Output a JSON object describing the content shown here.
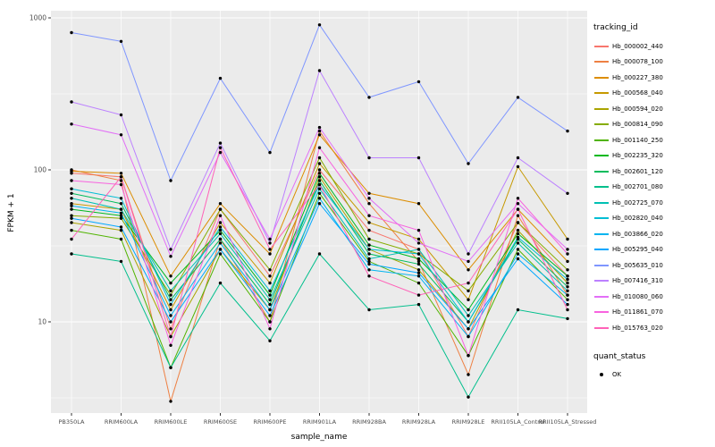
{
  "chart_data": {
    "type": "line",
    "title": "",
    "xlabel": "sample_name",
    "ylabel": "FPKM + 1",
    "y_scale": "log10",
    "y_ticks": [
      10,
      100,
      1000
    ],
    "y_tick_labels": [
      "10",
      "100",
      "1000"
    ],
    "y_minor_ticks": [
      3.162,
      31.62,
      316.2
    ],
    "ylim": [
      2.4,
      1100
    ],
    "grid": "on",
    "panel_background": "#EBEBEB",
    "gridline_color": "#FFFFFF",
    "point_color": "#000000",
    "legend_position": "right",
    "legend_title": "tracking_id",
    "categories": [
      "PB350LA",
      "RRIM600LA",
      "RRIM600LE",
      "RRIM600SE",
      "RRIM600PE",
      "RRIM901LA",
      "RRIM928BA",
      "RRIM928LA",
      "RRIM928LE",
      "RRII105LA_Control",
      "RRII105LA_Stressed"
    ],
    "series": [
      {
        "name": "Hb_000002_440",
        "color": "#F8766D",
        "values": [
          95,
          90,
          9,
          55,
          20,
          100,
          40,
          30,
          8,
          45,
          20
        ]
      },
      {
        "name": "Hb_000078_100",
        "color": "#EE8043",
        "values": [
          100,
          85,
          3,
          35,
          10,
          180,
          60,
          25,
          4.5,
          50,
          15
        ]
      },
      {
        "name": "Hb_000227_380",
        "color": "#DC8D00",
        "values": [
          98,
          95,
          20,
          60,
          28,
          170,
          70,
          60,
          22,
          55,
          25
        ]
      },
      {
        "name": "Hb_000568_040",
        "color": "#C69900",
        "values": [
          60,
          55,
          12,
          45,
          18,
          110,
          45,
          35,
          14,
          105,
          35
        ]
      },
      {
        "name": "Hb_000594_020",
        "color": "#AAA400",
        "values": [
          45,
          40,
          8,
          30,
          12,
          90,
          30,
          22,
          9,
          40,
          18
        ]
      },
      {
        "name": "Hb_000814_090",
        "color": "#86AC00",
        "values": [
          50,
          48,
          15,
          55,
          22,
          120,
          35,
          28,
          16,
          45,
          22
        ]
      },
      {
        "name": "Hb_001140_250",
        "color": "#50B400",
        "values": [
          40,
          35,
          5,
          28,
          10,
          70,
          25,
          18,
          6,
          30,
          14
        ]
      },
      {
        "name": "Hb_002235_320",
        "color": "#00B81F",
        "values": [
          55,
          50,
          18,
          40,
          15,
          95,
          32,
          26,
          12,
          38,
          20
        ]
      },
      {
        "name": "Hb_002601_120",
        "color": "#00BC5C",
        "values": [
          70,
          60,
          14,
          35,
          13,
          85,
          28,
          24,
          10,
          35,
          17
        ]
      },
      {
        "name": "Hb_002701_080",
        "color": "#00BF8C",
        "values": [
          28,
          25,
          5,
          18,
          7.5,
          28,
          12,
          13,
          3.2,
          12,
          10.5
        ]
      },
      {
        "name": "Hb_002725_070",
        "color": "#00C0B3",
        "values": [
          65,
          55,
          16,
          38,
          14,
          75,
          26,
          30,
          11,
          33,
          16
        ]
      },
      {
        "name": "Hb_002820_040",
        "color": "#00BDD4",
        "values": [
          75,
          65,
          13,
          42,
          16,
          80,
          30,
          28,
          10,
          36,
          19
        ]
      },
      {
        "name": "Hb_003866_020",
        "color": "#00B4EF",
        "values": [
          58,
          52,
          11,
          33,
          12,
          65,
          22,
          20,
          8,
          28,
          15
        ]
      },
      {
        "name": "Hb_005295_040",
        "color": "#00A7FF",
        "values": [
          48,
          42,
          10,
          30,
          11,
          60,
          24,
          21,
          9,
          26,
          13
        ]
      },
      {
        "name": "Hb_005635_010",
        "color": "#7F96FF",
        "values": [
          800,
          700,
          85,
          400,
          130,
          900,
          300,
          380,
          110,
          300,
          180
        ]
      },
      {
        "name": "Hb_007416_310",
        "color": "#BC81FF",
        "values": [
          280,
          230,
          30,
          150,
          33,
          450,
          120,
          120,
          28,
          120,
          70
        ]
      },
      {
        "name": "Hb_010080_060",
        "color": "#E26EF7",
        "values": [
          200,
          170,
          27,
          130,
          35,
          190,
          65,
          33,
          25,
          60,
          30
        ]
      },
      {
        "name": "Hb_011861_070",
        "color": "#F863DF",
        "values": [
          85,
          80,
          7,
          50,
          9,
          140,
          50,
          40,
          6,
          65,
          28
        ]
      },
      {
        "name": "Hb_015763_020",
        "color": "#FF62B8",
        "values": [
          35,
          90,
          8,
          140,
          30,
          80,
          20,
          15,
          18,
          55,
          12
        ]
      }
    ],
    "quant_status": {
      "title": "quant_status",
      "items": [
        {
          "label": "OK",
          "color": "#000000"
        }
      ]
    }
  }
}
